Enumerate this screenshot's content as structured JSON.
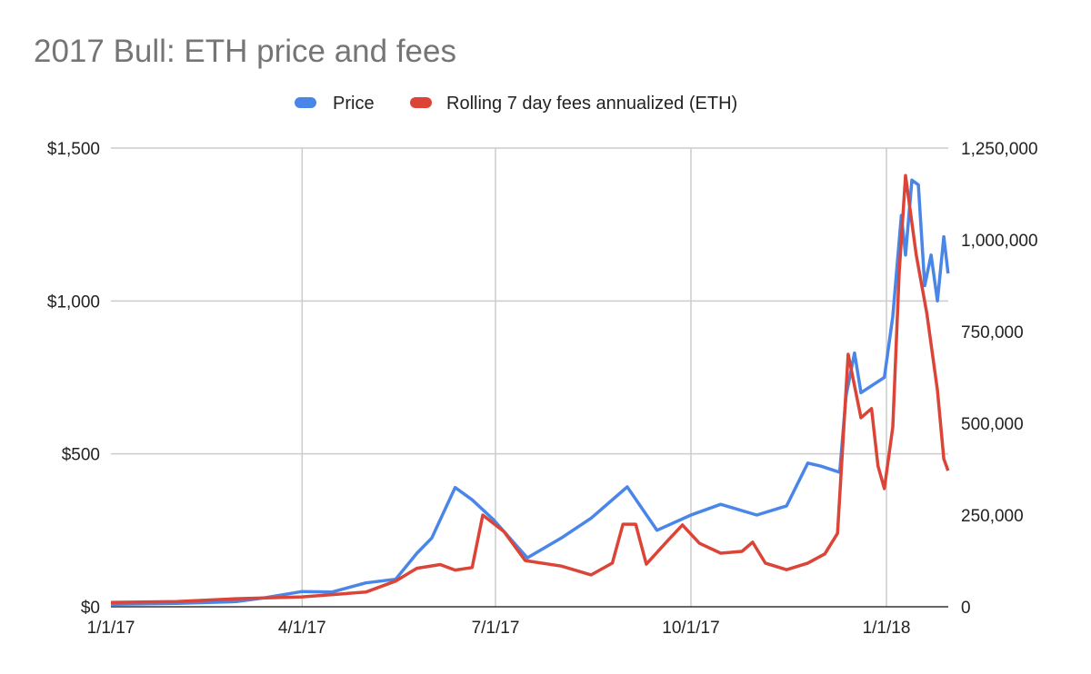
{
  "chart_data": {
    "type": "line",
    "title": "2017 Bull: ETH price and fees",
    "legend_position": "top",
    "grid": true,
    "x_ticks": [
      "1/1/17",
      "4/1/17",
      "7/1/17",
      "10/1/17",
      "1/1/18"
    ],
    "x_range": [
      "2017-01-01",
      "2018-01-30"
    ],
    "y_left": {
      "ticks": [
        "$0",
        "$500",
        "$1,000",
        "$1,500"
      ],
      "range": [
        0,
        1500
      ]
    },
    "y_right": {
      "ticks": [
        "0",
        "250,000",
        "500,000",
        "750,000",
        "1,000,000",
        "1,250,000"
      ],
      "range": [
        0,
        1250000
      ]
    },
    "series": [
      {
        "name": "Price",
        "axis": "left",
        "color": "#4a86e8",
        "points": [
          [
            "2017-01-01",
            8
          ],
          [
            "2017-02-01",
            11
          ],
          [
            "2017-03-01",
            17
          ],
          [
            "2017-03-15",
            30
          ],
          [
            "2017-04-01",
            50
          ],
          [
            "2017-04-15",
            48
          ],
          [
            "2017-05-01",
            78
          ],
          [
            "2017-05-15",
            90
          ],
          [
            "2017-05-25",
            175
          ],
          [
            "2017-06-01",
            225
          ],
          [
            "2017-06-12",
            390
          ],
          [
            "2017-06-20",
            350
          ],
          [
            "2017-06-30",
            285
          ],
          [
            "2017-07-16",
            160
          ],
          [
            "2017-08-01",
            225
          ],
          [
            "2017-08-15",
            290
          ],
          [
            "2017-09-01",
            392
          ],
          [
            "2017-09-15",
            250
          ],
          [
            "2017-10-01",
            300
          ],
          [
            "2017-10-15",
            335
          ],
          [
            "2017-11-01",
            300
          ],
          [
            "2017-11-15",
            330
          ],
          [
            "2017-11-25",
            470
          ],
          [
            "2017-12-01",
            460
          ],
          [
            "2017-12-10",
            440
          ],
          [
            "2017-12-13",
            690
          ],
          [
            "2017-12-17",
            830
          ],
          [
            "2017-12-20",
            700
          ],
          [
            "2017-12-31",
            750
          ],
          [
            "2018-01-04",
            950
          ],
          [
            "2018-01-08",
            1280
          ],
          [
            "2018-01-10",
            1150
          ],
          [
            "2018-01-13",
            1395
          ],
          [
            "2018-01-16",
            1380
          ],
          [
            "2018-01-19",
            1050
          ],
          [
            "2018-01-22",
            1150
          ],
          [
            "2018-01-25",
            1000
          ],
          [
            "2018-01-28",
            1210
          ],
          [
            "2018-01-30",
            1090
          ]
        ]
      },
      {
        "name": "Rolling 7 day fees annualized (ETH)",
        "axis": "right",
        "color": "#db4437",
        "points": [
          [
            "2017-01-01",
            12000
          ],
          [
            "2017-02-01",
            14000
          ],
          [
            "2017-03-01",
            22000
          ],
          [
            "2017-04-01",
            27000
          ],
          [
            "2017-05-01",
            40000
          ],
          [
            "2017-05-15",
            70000
          ],
          [
            "2017-05-25",
            105000
          ],
          [
            "2017-06-05",
            115000
          ],
          [
            "2017-06-12",
            100000
          ],
          [
            "2017-06-20",
            107000
          ],
          [
            "2017-06-25",
            250000
          ],
          [
            "2017-07-05",
            205000
          ],
          [
            "2017-07-15",
            126000
          ],
          [
            "2017-08-01",
            111000
          ],
          [
            "2017-08-15",
            87000
          ],
          [
            "2017-08-25",
            119000
          ],
          [
            "2017-08-30",
            225000
          ],
          [
            "2017-09-05",
            225000
          ],
          [
            "2017-09-10",
            116000
          ],
          [
            "2017-09-20",
            180000
          ],
          [
            "2017-09-27",
            223000
          ],
          [
            "2017-10-05",
            173000
          ],
          [
            "2017-10-15",
            146000
          ],
          [
            "2017-10-25",
            151000
          ],
          [
            "2017-10-30",
            176000
          ],
          [
            "2017-11-05",
            119000
          ],
          [
            "2017-11-15",
            101000
          ],
          [
            "2017-11-25",
            119000
          ],
          [
            "2017-12-03",
            144000
          ],
          [
            "2017-12-09",
            200000
          ],
          [
            "2017-12-14",
            688000
          ],
          [
            "2017-12-20",
            515000
          ],
          [
            "2017-12-25",
            540000
          ],
          [
            "2017-12-28",
            384000
          ],
          [
            "2017-12-31",
            322000
          ],
          [
            "2018-01-04",
            490000
          ],
          [
            "2018-01-07",
            910000
          ],
          [
            "2018-01-10",
            1175000
          ],
          [
            "2018-01-15",
            960000
          ],
          [
            "2018-01-20",
            800000
          ],
          [
            "2018-01-25",
            590000
          ],
          [
            "2018-01-28",
            403000
          ],
          [
            "2018-01-30",
            371000
          ]
        ]
      }
    ]
  }
}
